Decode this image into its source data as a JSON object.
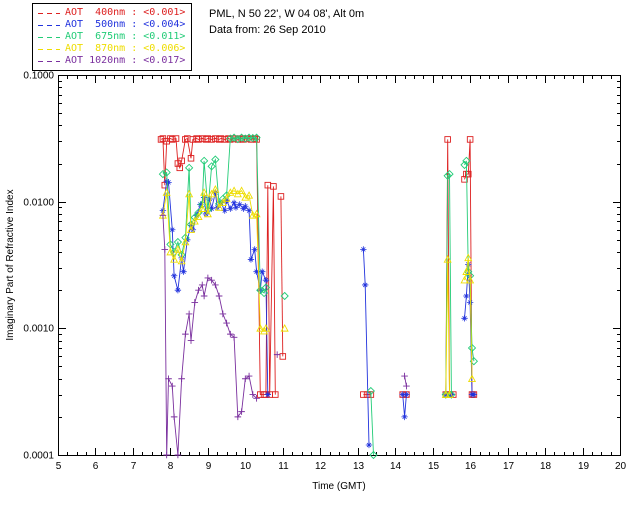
{
  "header": {
    "line1": "PML, N 50 22', W 04 08', Alt 0m",
    "line2": "Data from: 26 Sep 2010"
  },
  "chart_data": {
    "type": "line",
    "title": "",
    "xlabel": "Time (GMT)",
    "ylabel": "Imaginary Part of Refractive Index",
    "xlim": [
      5,
      20
    ],
    "ylim": [
      0.0001,
      0.1
    ],
    "yscale": "log",
    "grid": false,
    "legend_position": "top-left",
    "xticks": [
      5,
      6,
      7,
      8,
      9,
      10,
      11,
      12,
      13,
      14,
      15,
      16,
      17,
      18,
      19,
      20
    ],
    "yticks": [
      0.0001,
      0.001,
      0.01,
      0.1
    ],
    "ytick_labels": [
      "0.0001",
      "0.0010",
      "0.0100",
      "0.1000"
    ],
    "series": [
      {
        "name": "AOT 400nm",
        "wavelength": "400nm",
        "legend_label": "AOT  400nm : <0.001>",
        "aot_value": "<0.001>",
        "color": "#dd2020",
        "marker": "square",
        "segments": [
          [
            [
              7.75,
              0.031
            ],
            [
              7.8,
              0.0315
            ],
            [
              7.85,
              0.0135
            ],
            [
              7.9,
              0.03
            ],
            [
              8.0,
              0.0315
            ],
            [
              8.05,
              0.031
            ],
            [
              8.15,
              0.0315
            ],
            [
              8.2,
              0.02
            ],
            [
              8.25,
              0.0185
            ],
            [
              8.3,
              0.021
            ],
            [
              8.4,
              0.031
            ],
            [
              8.45,
              0.0315
            ],
            [
              8.55,
              0.022
            ],
            [
              8.6,
              0.031
            ],
            [
              8.7,
              0.0315
            ],
            [
              8.75,
              0.031
            ],
            [
              8.85,
              0.0315
            ],
            [
              8.95,
              0.031
            ],
            [
              9.0,
              0.0315
            ],
            [
              9.1,
              0.031
            ],
            [
              9.2,
              0.0315
            ],
            [
              9.3,
              0.031
            ],
            [
              9.35,
              0.0315
            ],
            [
              9.45,
              0.031
            ],
            [
              9.55,
              0.0315
            ],
            [
              9.6,
              0.031
            ],
            [
              9.7,
              0.0315
            ],
            [
              9.8,
              0.031
            ],
            [
              9.9,
              0.0315
            ],
            [
              9.95,
              0.031
            ],
            [
              10.05,
              0.0315
            ],
            [
              10.15,
              0.031
            ],
            [
              10.25,
              0.0315
            ],
            [
              10.3,
              0.031
            ],
            [
              10.4,
              0.0003
            ],
            [
              10.5,
              0.0003
            ],
            [
              10.55,
              0.0003
            ],
            [
              10.6,
              0.0135
            ],
            [
              10.65,
              0.0003
            ],
            [
              10.75,
              0.0132
            ],
            [
              10.8,
              0.0003
            ]
          ],
          [
            [
              10.95,
              0.011
            ],
            [
              11.0,
              0.0006
            ]
          ],
          [
            [
              13.15,
              0.0003
            ],
            [
              13.25,
              0.0003
            ],
            [
              13.35,
              0.0003
            ]
          ],
          [
            [
              14.2,
              0.0003
            ],
            [
              14.3,
              0.0003
            ]
          ],
          [
            [
              15.35,
              0.0003
            ],
            [
              15.4,
              0.031
            ],
            [
              15.45,
              0.0003
            ],
            [
              15.55,
              0.0003
            ]
          ],
          [
            [
              15.85,
              0.015
            ],
            [
              15.9,
              0.0165
            ],
            [
              15.95,
              0.0165
            ],
            [
              16.0,
              0.031
            ],
            [
              16.05,
              0.0003
            ],
            [
              16.1,
              0.0003
            ]
          ]
        ]
      },
      {
        "name": "AOT 500nm",
        "wavelength": "500nm",
        "legend_label": "AOT  500nm : <0.004>",
        "aot_value": "<0.004>",
        "color": "#2233dd",
        "marker": "asterisk",
        "segments": [
          [
            [
              7.8,
              0.0085
            ],
            [
              7.9,
              0.0145
            ],
            [
              7.95,
              0.0142
            ],
            [
              8.05,
              0.006
            ],
            [
              8.1,
              0.0026
            ],
            [
              8.2,
              0.002
            ],
            [
              8.3,
              0.0036
            ],
            [
              8.35,
              0.0028
            ],
            [
              8.45,
              0.005
            ],
            [
              8.55,
              0.0065
            ],
            [
              8.6,
              0.006
            ],
            [
              8.7,
              0.0078
            ],
            [
              8.8,
              0.0095
            ],
            [
              8.9,
              0.0108
            ],
            [
              8.95,
              0.008
            ],
            [
              9.05,
              0.0105
            ],
            [
              9.1,
              0.0088
            ],
            [
              9.2,
              0.0118
            ],
            [
              9.25,
              0.009
            ],
            [
              9.35,
              0.0098
            ],
            [
              9.45,
              0.0085
            ],
            [
              9.5,
              0.0102
            ],
            [
              9.6,
              0.0088
            ],
            [
              9.7,
              0.0098
            ],
            [
              9.75,
              0.009
            ],
            [
              9.85,
              0.0095
            ],
            [
              9.95,
              0.0088
            ],
            [
              10.0,
              0.0092
            ],
            [
              10.1,
              0.0085
            ],
            [
              10.15,
              0.0035
            ],
            [
              10.25,
              0.0042
            ],
            [
              10.3,
              0.0028
            ],
            [
              10.4,
              0.002
            ],
            [
              10.45,
              0.0028
            ],
            [
              10.55,
              0.0024
            ],
            [
              10.6,
              0.0003
            ]
          ],
          [
            [
              13.15,
              0.0042
            ],
            [
              13.2,
              0.0022
            ],
            [
              13.3,
              0.00012
            ]
          ],
          [
            [
              14.2,
              0.0003
            ],
            [
              14.25,
              0.0002
            ],
            [
              14.3,
              0.0003
            ]
          ],
          [
            [
              15.35,
              0.0003
            ],
            [
              15.45,
              0.0003
            ],
            [
              15.5,
              0.0003
            ]
          ],
          [
            [
              15.85,
              0.0012
            ],
            [
              15.9,
              0.0018
            ],
            [
              15.95,
              0.0032
            ],
            [
              16.0,
              0.0016
            ],
            [
              16.05,
              0.0003
            ],
            [
              16.1,
              0.0003
            ]
          ]
        ]
      },
      {
        "name": "AOT 675nm",
        "wavelength": "675nm",
        "legend_label": "AOT  675nm : <0.011>",
        "aot_value": "<0.011>",
        "color": "#22cc77",
        "marker": "diamond",
        "segments": [
          [
            [
              7.8,
              0.0165
            ],
            [
              7.9,
              0.017
            ],
            [
              8.0,
              0.0046
            ],
            [
              8.1,
              0.004
            ],
            [
              8.2,
              0.0048
            ],
            [
              8.3,
              0.0038
            ],
            [
              8.4,
              0.0052
            ],
            [
              8.5,
              0.0185
            ],
            [
              8.55,
              0.0066
            ],
            [
              8.65,
              0.0075
            ],
            [
              8.75,
              0.0082
            ],
            [
              8.85,
              0.0095
            ],
            [
              8.9,
              0.021
            ],
            [
              9.0,
              0.0086
            ],
            [
              9.1,
              0.019
            ],
            [
              9.2,
              0.0215
            ],
            [
              9.3,
              0.0096
            ],
            [
              9.4,
              0.0105
            ],
            [
              9.5,
              0.0112
            ],
            [
              9.6,
              0.0315
            ],
            [
              9.7,
              0.032
            ],
            [
              9.8,
              0.0312
            ],
            [
              9.9,
              0.032
            ],
            [
              10.0,
              0.0315
            ],
            [
              10.1,
              0.032
            ],
            [
              10.2,
              0.0318
            ],
            [
              10.3,
              0.032
            ],
            [
              10.4,
              0.002
            ],
            [
              10.5,
              0.0019
            ],
            [
              10.55,
              0.0021
            ]
          ],
          [
            [
              11.05,
              0.0018
            ]
          ],
          [
            [
              13.35,
              0.00032
            ],
            [
              13.42,
              0.0001
            ]
          ],
          [
            [
              15.35,
              0.0003
            ],
            [
              15.4,
              0.016
            ],
            [
              15.45,
              0.0165
            ],
            [
              15.5,
              0.0003
            ]
          ],
          [
            [
              15.85,
              0.0195
            ],
            [
              15.9,
              0.021
            ],
            [
              15.95,
              0.0028
            ],
            [
              16.0,
              0.0026
            ],
            [
              16.05,
              0.0007
            ],
            [
              16.1,
              0.00055
            ]
          ]
        ]
      },
      {
        "name": "AOT 870nm",
        "wavelength": "870nm",
        "legend_label": "AOT  870nm : <0.006>",
        "aot_value": "<0.006>",
        "color": "#eedd00",
        "marker": "triangle",
        "segments": [
          [
            [
              7.8,
              0.0078
            ],
            [
              7.9,
              0.0118
            ],
            [
              8.0,
              0.004
            ],
            [
              8.1,
              0.0035
            ],
            [
              8.2,
              0.0042
            ],
            [
              8.3,
              0.0034
            ],
            [
              8.4,
              0.0048
            ],
            [
              8.5,
              0.0115
            ],
            [
              8.55,
              0.006
            ],
            [
              8.65,
              0.007
            ],
            [
              8.75,
              0.0076
            ],
            [
              8.85,
              0.0088
            ],
            [
              8.9,
              0.0118
            ],
            [
              9.0,
              0.008
            ],
            [
              9.1,
              0.0115
            ],
            [
              9.2,
              0.0125
            ],
            [
              9.3,
              0.009
            ],
            [
              9.4,
              0.0098
            ],
            [
              9.5,
              0.0106
            ],
            [
              9.6,
              0.0118
            ],
            [
              9.7,
              0.0122
            ],
            [
              9.8,
              0.0115
            ],
            [
              9.9,
              0.0122
            ],
            [
              10.0,
              0.0108
            ],
            [
              10.1,
              0.0112
            ],
            [
              10.2,
              0.0078
            ],
            [
              10.3,
              0.008
            ],
            [
              10.4,
              0.001
            ],
            [
              10.5,
              0.00095
            ],
            [
              10.55,
              0.001
            ]
          ],
          [
            [
              11.05,
              0.001
            ]
          ],
          [
            [
              15.35,
              0.0003
            ],
            [
              15.4,
              0.0035
            ],
            [
              15.45,
              0.0003
            ]
          ],
          [
            [
              15.85,
              0.0024
            ],
            [
              15.9,
              0.0028
            ],
            [
              15.95,
              0.0036
            ],
            [
              16.0,
              0.0024
            ],
            [
              16.05,
              0.0004
            ]
          ]
        ]
      },
      {
        "name": "AOT 1020nm",
        "wavelength": "1020nm",
        "legend_label": "AOT 1020nm : <0.017>",
        "aot_value": "<0.017>",
        "color": "#7a2f9e",
        "marker": "plus",
        "segments": [
          [
            [
              7.8,
              0.0078
            ],
            [
              7.85,
              0.0042
            ],
            [
              7.9,
              0.0001
            ],
            [
              7.95,
              0.0004
            ],
            [
              8.05,
              0.00035
            ],
            [
              8.1,
              0.0002
            ],
            [
              8.2,
              0.0001
            ],
            [
              8.3,
              0.0004
            ],
            [
              8.4,
              0.0009
            ],
            [
              8.5,
              0.0013
            ],
            [
              8.55,
              0.0008
            ],
            [
              8.65,
              0.0016
            ],
            [
              8.75,
              0.002
            ],
            [
              8.85,
              0.0022
            ],
            [
              8.9,
              0.0018
            ],
            [
              9.0,
              0.0025
            ],
            [
              9.1,
              0.0024
            ],
            [
              9.2,
              0.0022
            ],
            [
              9.3,
              0.0018
            ],
            [
              9.4,
              0.0013
            ],
            [
              9.5,
              0.0011
            ],
            [
              9.6,
              0.0009
            ],
            [
              9.7,
              0.00085
            ],
            [
              9.8,
              0.0002
            ],
            [
              9.9,
              0.00022
            ],
            [
              10.0,
              0.0004
            ],
            [
              10.1,
              0.00042
            ],
            [
              10.2,
              0.0003
            ],
            [
              10.3,
              0.00028
            ]
          ],
          [
            [
              10.85,
              0.00062
            ]
          ],
          [
            [
              14.25,
              0.00042
            ],
            [
              14.3,
              0.00035
            ]
          ]
        ]
      }
    ]
  }
}
